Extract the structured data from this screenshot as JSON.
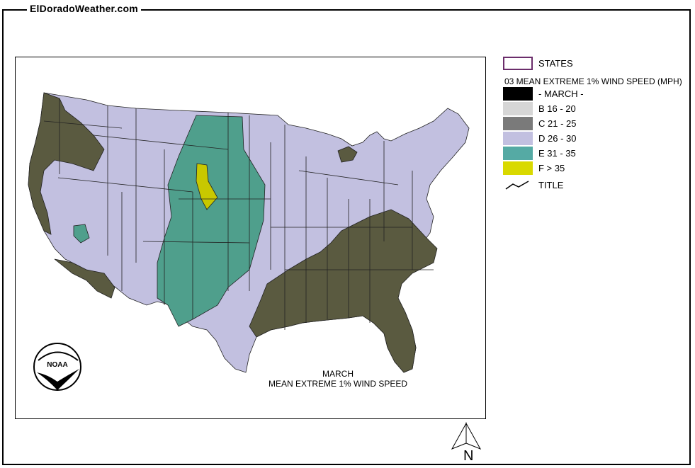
{
  "site": {
    "title": "ElDoradoWeather.com"
  },
  "legend": {
    "states_label": "STATES",
    "layer_title": "03 MEAN EXTREME 1% WIND SPEED (MPH)",
    "classes": [
      {
        "label": "- MARCH -",
        "color": "#000000"
      },
      {
        "label": "B 16 - 20",
        "color": "#d6d6d6"
      },
      {
        "label": "C 21 - 25",
        "color": "#7a7a7a"
      },
      {
        "label": "D 26 - 30",
        "color": "#c2c0e0"
      },
      {
        "label": "E 31 - 35",
        "color": "#55aaa4"
      },
      {
        "label": "F > 35",
        "color": "#d9d900"
      }
    ],
    "title_label": "TITLE"
  },
  "map": {
    "caption_line1": "MARCH",
    "caption_line2": "MEAN EXTREME 1% WIND SPEED",
    "logo_text": "NOAA",
    "north_label": "N",
    "region_colors": {
      "base": "#c2c0e0",
      "high": "#4f9f8c",
      "very_high": "#c8c800",
      "low": "#5a5a40",
      "state_border": "#222222"
    }
  }
}
